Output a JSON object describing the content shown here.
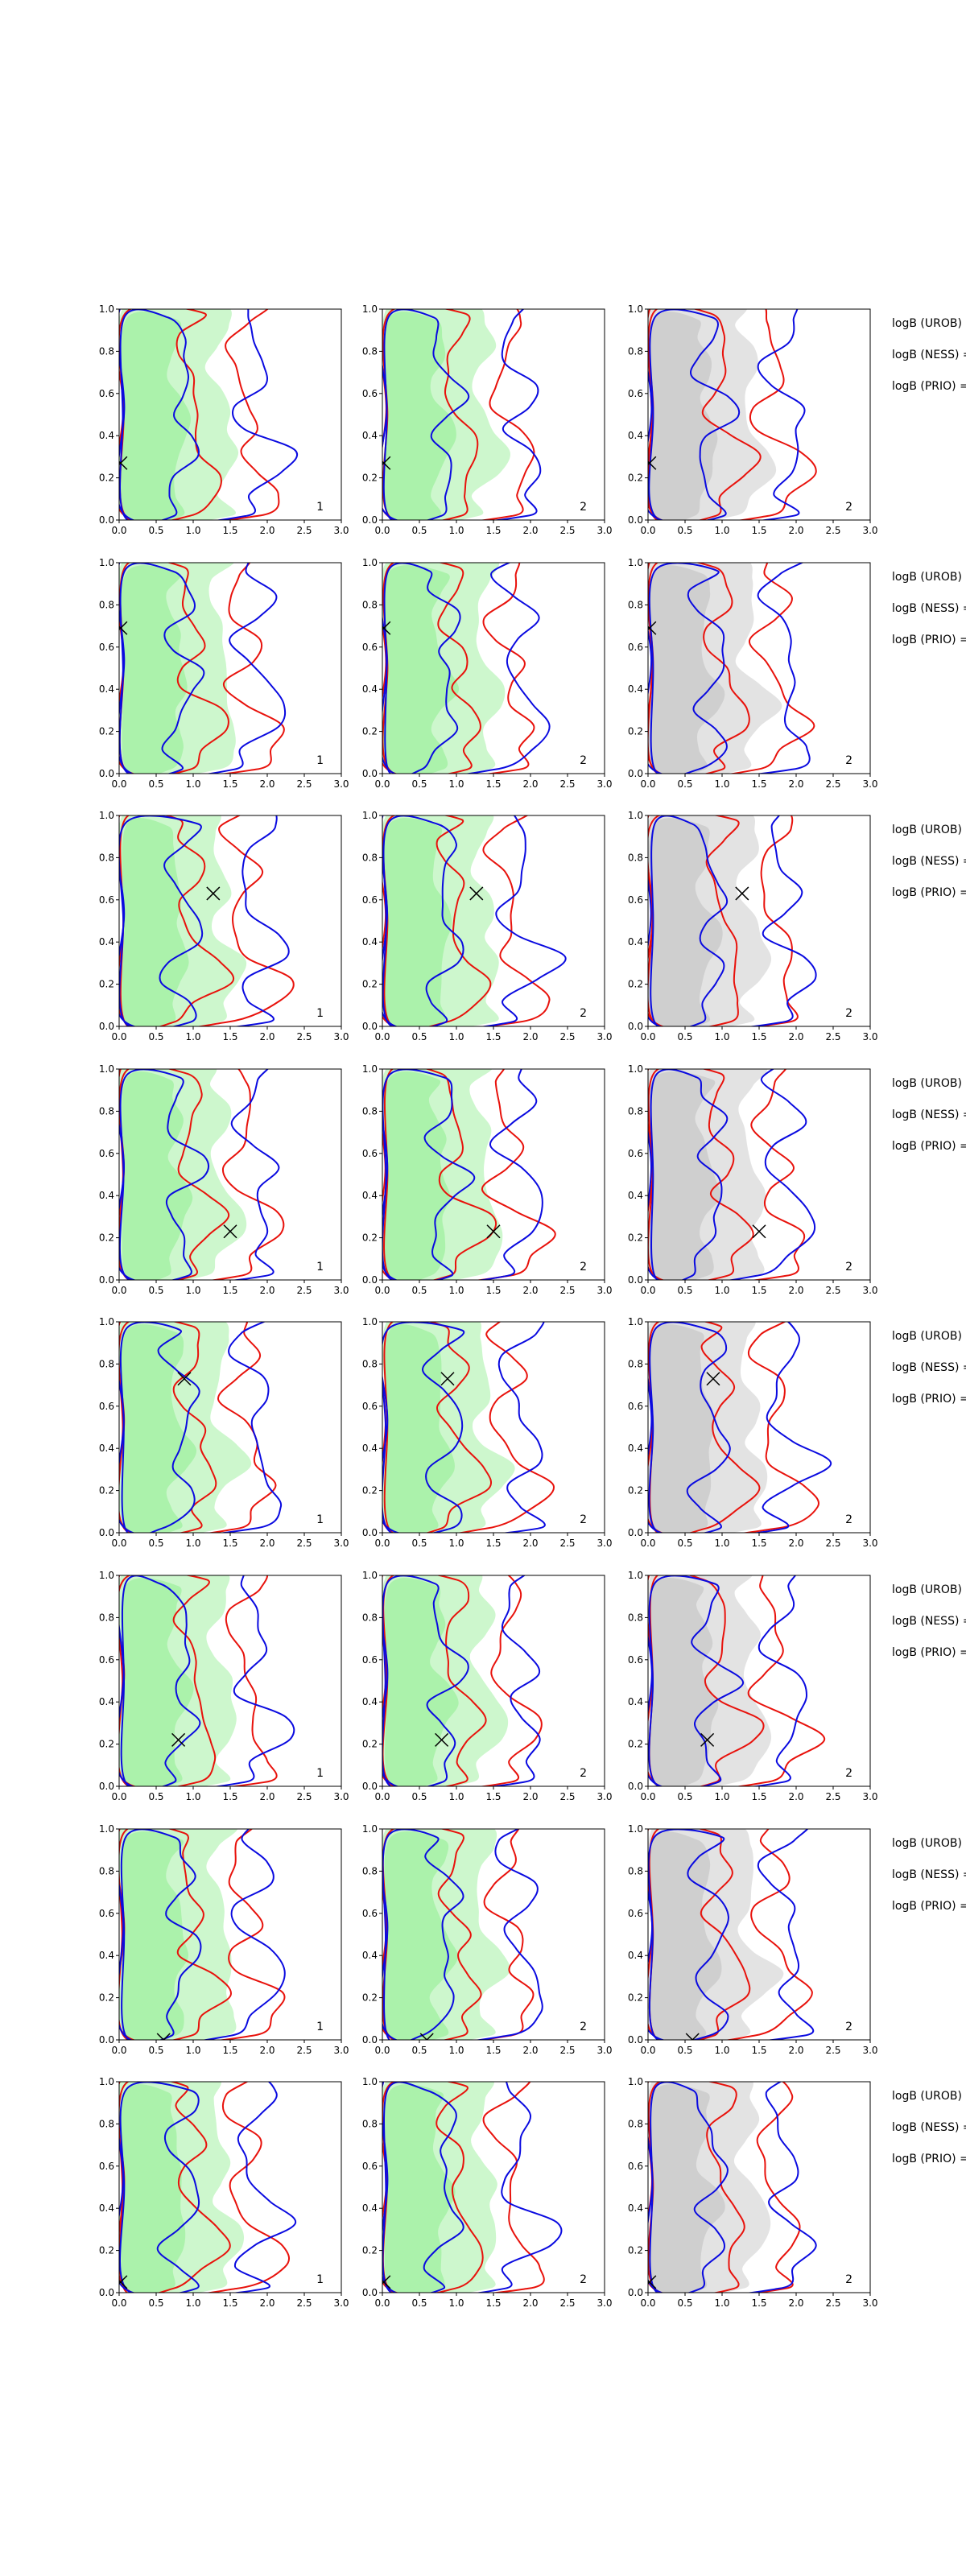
{
  "chart_data": {
    "type": "contour",
    "layout": {
      "rows": 8,
      "cols": 3
    },
    "x_ticks": [
      "0.0",
      "0.5",
      "1.0",
      "1.5",
      "2.0",
      "2.5",
      "3.0"
    ],
    "y_ticks": [
      "0.0",
      "0.2",
      "0.4",
      "0.6",
      "0.8",
      "1.0"
    ],
    "xlim": [
      0,
      3
    ],
    "ylim": [
      0,
      1
    ],
    "panel_notes": [
      "1",
      "2",
      "2"
    ],
    "fill_colors": [
      "#90ee90",
      "#90ee90",
      "#c0c0c0"
    ],
    "line_colors": {
      "red": "#e8120c",
      "blue": "#0a0ae0"
    },
    "side_labels": [
      "logB (UROB) =",
      "logB (NESS) =",
      "logB (PRIO) ="
    ],
    "rows": [
      {
        "marker": [
          0.02,
          0.27
        ]
      },
      {
        "marker": [
          0.02,
          0.69
        ]
      },
      {
        "marker": [
          1.27,
          0.63
        ]
      },
      {
        "marker": [
          1.5,
          0.23
        ]
      },
      {
        "marker": [
          0.88,
          0.73
        ]
      },
      {
        "marker": [
          0.8,
          0.22
        ]
      },
      {
        "marker": [
          0.6,
          0.0
        ]
      },
      {
        "marker": [
          0.02,
          0.05
        ]
      }
    ]
  }
}
